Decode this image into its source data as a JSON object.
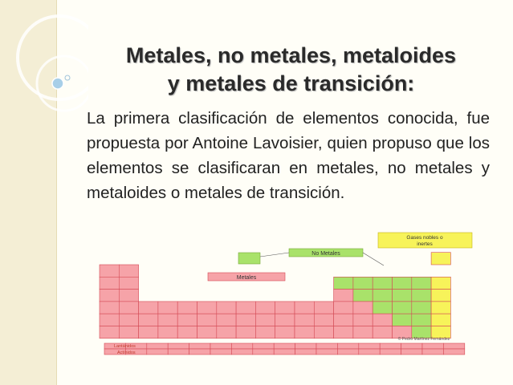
{
  "slide": {
    "title_line1": "Metales, no metales, metaloides",
    "title_line2": "y metales de transición:",
    "paragraph": "La primera clasificación de elementos conocida, fue propuesta por Antoine Lavoisier, quien propuso que los elementos se clasificaran en metales, no metales y metaloides o metales de transición."
  },
  "figure": {
    "label_gases": "Gases nobles o inertes",
    "label_nometales": "No Metales",
    "label_metales": "Metales",
    "label_lantanidos": "Lantánidos",
    "label_actinidos": "Actínidos",
    "credit": "© Pedro Martínez Fernández",
    "colors": {
      "metal": "#f6a3a8",
      "nonmetal": "#a9e26a",
      "noble": "#f7f35a",
      "grid": "#d44a55"
    }
  }
}
